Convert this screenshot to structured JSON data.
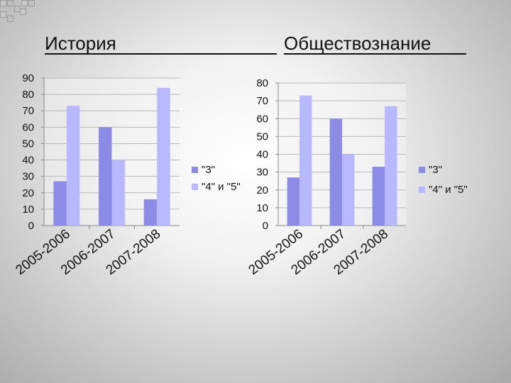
{
  "slide": {
    "title_left": "История",
    "title_right": "Обществознание"
  },
  "colors": {
    "series_3": "#8c8ce6",
    "series_45": "#b8b8ff"
  },
  "chart_data": [
    {
      "type": "bar",
      "categories": [
        "2005-2006",
        "2006-2007",
        "2007-2008"
      ],
      "series": [
        {
          "name": "\"3\"",
          "values": [
            27,
            60,
            16
          ]
        },
        {
          "name": "\"4\" и \"5\"",
          "values": [
            73,
            40,
            84
          ]
        }
      ],
      "title": "История",
      "ylim": [
        0,
        90
      ],
      "yticks": [
        0,
        10,
        20,
        30,
        40,
        50,
        60,
        70,
        80,
        90
      ],
      "grid": true,
      "legend": "right"
    },
    {
      "type": "bar",
      "categories": [
        "2005-2006",
        "2006-2007",
        "2007-2008"
      ],
      "series": [
        {
          "name": "\"3\"",
          "values": [
            27,
            60,
            33
          ]
        },
        {
          "name": "\"4\" и \"5\"",
          "values": [
            73,
            40,
            67
          ]
        }
      ],
      "title": "Обществознание",
      "ylim": [
        0,
        80
      ],
      "yticks": [
        0,
        10,
        20,
        30,
        40,
        50,
        60,
        70,
        80
      ],
      "grid": true,
      "legend": "right"
    }
  ]
}
